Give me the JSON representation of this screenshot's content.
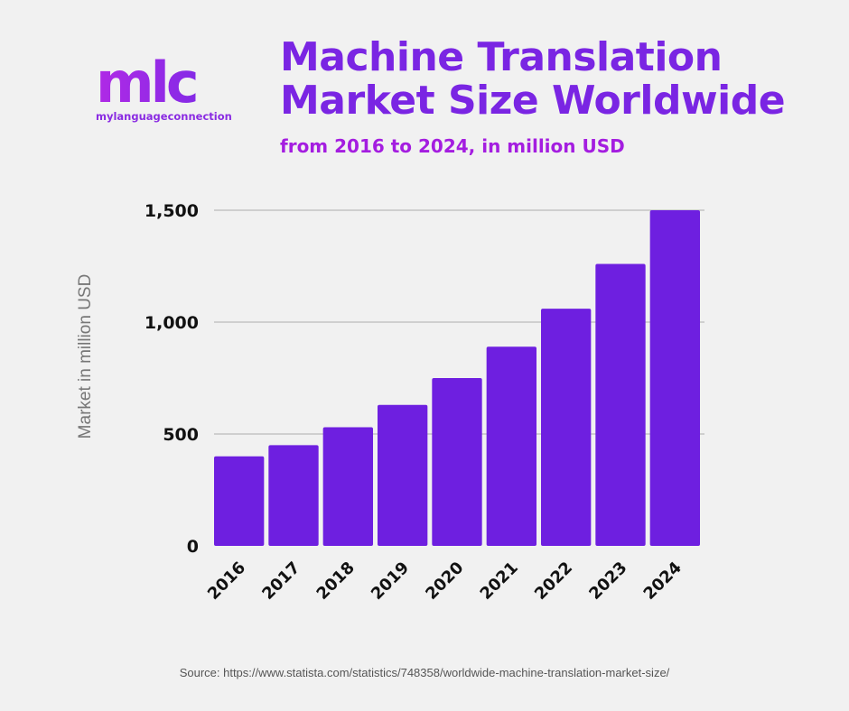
{
  "logo": {
    "mark": "mlc",
    "text": "mylanguageconnection"
  },
  "source": "Source: https://www.statista.com/statistics/748358/worldwide-machine-translation-market-size/",
  "colors": {
    "bar": "#6e1fe0",
    "title": "#7a25e3",
    "subtitle": "#a41de0",
    "background": "#f1f1f1"
  },
  "chart_data": {
    "type": "bar",
    "title": "Machine Translation Market Size Worldwide",
    "subtitle": "from 2016 to 2024, in million USD",
    "xlabel": "",
    "ylabel": "Market in million USD",
    "categories": [
      "2016",
      "2017",
      "2018",
      "2019",
      "2020",
      "2021",
      "2022",
      "2023",
      "2024"
    ],
    "values": [
      400,
      450,
      530,
      630,
      750,
      890,
      1060,
      1260,
      1500
    ],
    "ylim": [
      0,
      1500
    ],
    "yticks": [
      0,
      500,
      1000,
      1500
    ],
    "ytick_labels": [
      "0",
      "500",
      "1,000",
      "1,500"
    ],
    "grid": true,
    "legend": "none"
  }
}
